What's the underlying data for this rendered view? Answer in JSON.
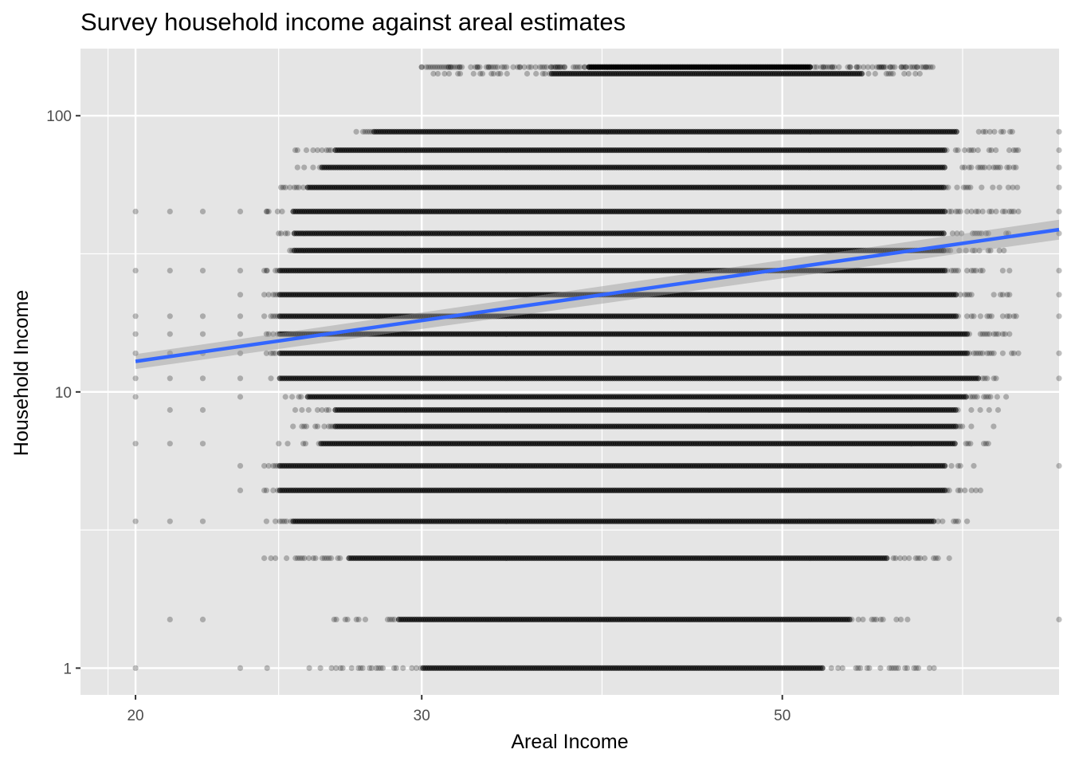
{
  "chart_data": {
    "type": "scatter",
    "title": "Survey household income against areal estimates",
    "xlabel": "Areal Income",
    "ylabel": "Household Income",
    "x_scale": "log",
    "y_scale": "log",
    "xlim": [
      18.5,
      74
    ],
    "ylim": [
      0.8,
      175
    ],
    "x_ticks": [
      20,
      30,
      50
    ],
    "x_tick_labels": [
      "20",
      "30",
      "50"
    ],
    "y_ticks": [
      1,
      10,
      100
    ],
    "y_tick_labels": [
      "1",
      "10",
      "100"
    ],
    "grid": true,
    "panel_color": "#e5e5e5",
    "grid_color": "#ffffff",
    "point_color": "#000000",
    "point_alpha": 0.25,
    "y_levels": [
      1.0,
      1.5,
      2.5,
      3.4,
      4.4,
      5.4,
      6.5,
      7.5,
      8.6,
      9.6,
      11.2,
      13.8,
      16.2,
      18.8,
      22.5,
      27.5,
      32.5,
      37.5,
      45,
      55,
      65,
      75,
      87.5,
      142,
      150,
      150
    ],
    "series": [
      {
        "x_range": [
          [
            25.5,
            62.5
          ],
          [
            26.5,
            60
          ],
          [
            24,
            64
          ],
          [
            24,
            65
          ],
          [
            24,
            66.5
          ],
          [
            24,
            66.5
          ],
          [
            24.5,
            67
          ],
          [
            25,
            68
          ],
          [
            25,
            68
          ],
          [
            24.5,
            69
          ],
          [
            24,
            68.5
          ],
          [
            24,
            70
          ],
          [
            24,
            70
          ],
          [
            24,
            70
          ],
          [
            24,
            69
          ],
          [
            24,
            69
          ],
          [
            24.5,
            69
          ],
          [
            24.5,
            69
          ],
          [
            24,
            70
          ],
          [
            24.5,
            70
          ],
          [
            25,
            70
          ],
          [
            25,
            70
          ],
          [
            27,
            70
          ],
          [
            30.5,
            61
          ],
          [
            30,
            62
          ],
          [
            30,
            62
          ]
        ],
        "dense_range": [
          [
            30,
            53
          ],
          [
            29,
            55
          ],
          [
            27,
            58
          ],
          [
            25,
            62
          ],
          [
            24.5,
            63
          ],
          [
            24.5,
            63
          ],
          [
            26,
            64
          ],
          [
            26.5,
            64
          ],
          [
            26.5,
            64
          ],
          [
            25.5,
            65
          ],
          [
            24.5,
            66
          ],
          [
            24.5,
            65
          ],
          [
            24.5,
            65
          ],
          [
            24.5,
            64
          ],
          [
            24.5,
            64
          ],
          [
            24.5,
            63
          ],
          [
            25,
            63
          ],
          [
            25,
            63
          ],
          [
            25,
            63
          ],
          [
            25.5,
            63
          ],
          [
            26,
            63
          ],
          [
            26.5,
            63
          ],
          [
            28,
            64
          ],
          [
            36,
            56
          ],
          [
            38,
            52
          ],
          [
            38,
            52
          ]
        ]
      },
      {
        "x": [
          20,
          21,
          22,
          23.2,
          24.1,
          20,
          21,
          22,
          23.2,
          20,
          21,
          22,
          23.2,
          20,
          21,
          22,
          23.2,
          20,
          21,
          22,
          23.2,
          20,
          21,
          22,
          23.2,
          20,
          21,
          22,
          23.2,
          20,
          21,
          22,
          23.2,
          23.2,
          20,
          21,
          22,
          23.2,
          24.1,
          20,
          21,
          22,
          23.2,
          24.1
        ],
        "y": [
          1,
          1.5,
          1.5,
          1,
          1,
          3.4,
          3.4,
          3.4,
          4.4,
          6.5,
          6.5,
          6.5,
          5.4,
          9.6,
          8.6,
          8.6,
          9.6,
          11.2,
          11.2,
          11.2,
          11.2,
          13.8,
          13.8,
          13.8,
          13.8,
          16.2,
          16.2,
          16.2,
          16.2,
          18.8,
          18.8,
          18.8,
          18.8,
          22.5,
          27.5,
          27.5,
          27.5,
          27.5,
          27.5,
          45,
          45,
          45,
          45,
          45
        ]
      },
      {
        "x": [
          74,
          74,
          74,
          74,
          74,
          74,
          74,
          74,
          74,
          74,
          74,
          74,
          74
        ],
        "y": [
          1.5,
          5.4,
          11.2,
          13.8,
          18.8,
          22.5,
          27.5,
          37.5,
          45,
          55,
          65,
          75,
          87.5
        ]
      }
    ],
    "fit_line": {
      "color": "#3366ff",
      "x": [
        20,
        74
      ],
      "y": [
        12.9,
        38.7
      ],
      "band_lower": [
        12.1,
        35.6
      ],
      "band_upper": [
        13.7,
        42.0
      ]
    }
  }
}
